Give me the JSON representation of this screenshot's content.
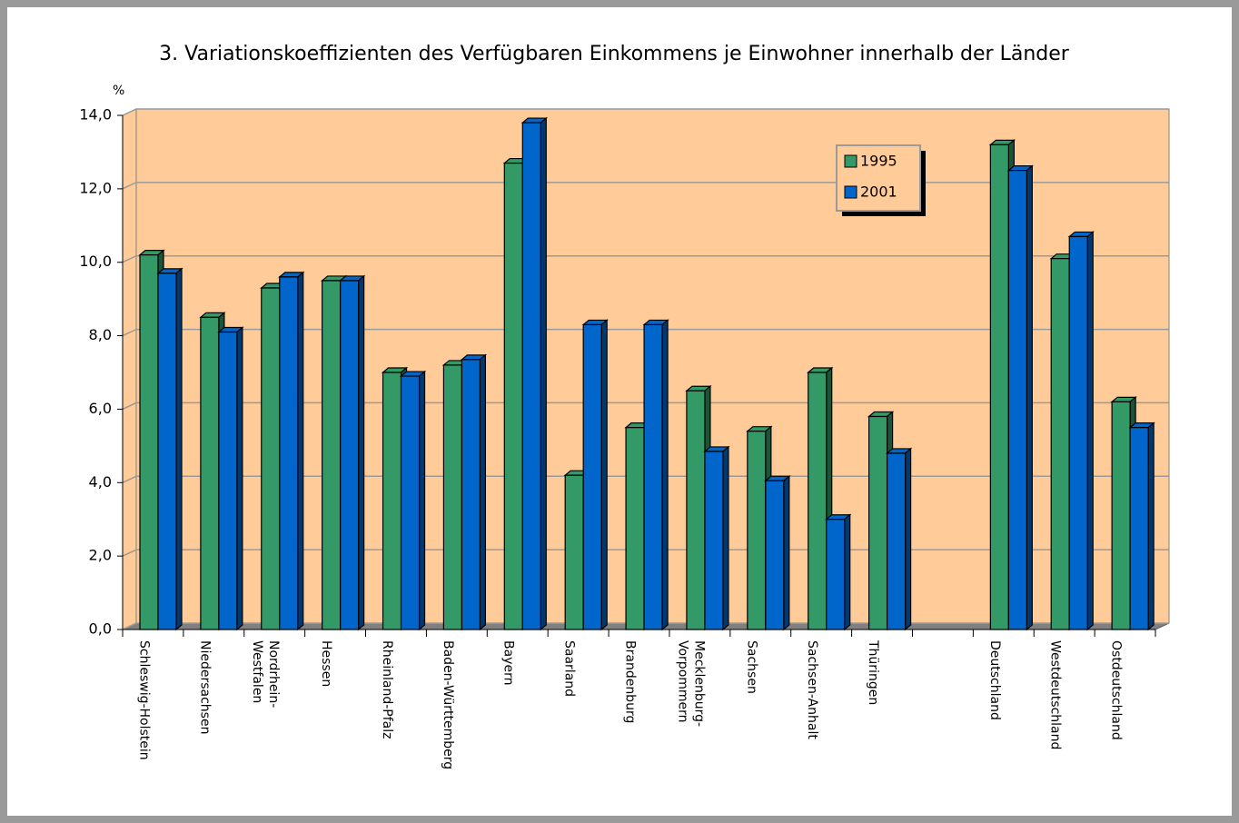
{
  "chart_data": {
    "type": "bar3d",
    "title": "3. Variationskoeffizienten des Verfügbaren Einkommens je Einwohner innerhalb der Länder",
    "y_unit_label": "%",
    "categories": [
      "Schleswig-Holstein",
      "Niedersachsen",
      "Nordrhein-Westfalen",
      "Hessen",
      "Rheinland-Pfalz",
      "Baden-Württemberg",
      "Bayern",
      "Saarland",
      "Brandenburg",
      "Mecklenburg-Vorpommern",
      "Sachsen",
      "Sachsen-Anhalt",
      "Thüringen",
      null,
      "Deutschland",
      "Westdeutschland",
      "Ostdeutschland"
    ],
    "series": [
      {
        "name": "1995",
        "color": "#339966",
        "values": [
          10.2,
          8.5,
          9.3,
          9.5,
          7.0,
          7.2,
          12.7,
          4.2,
          5.5,
          6.5,
          5.4,
          7.0,
          5.8,
          null,
          13.2,
          10.1,
          6.2
        ]
      },
      {
        "name": "2001",
        "color": "#0066cc",
        "values": [
          9.7,
          8.1,
          9.6,
          9.5,
          6.9,
          7.35,
          13.8,
          8.3,
          8.3,
          4.85,
          4.05,
          3.0,
          4.8,
          null,
          12.5,
          10.7,
          5.5
        ]
      }
    ],
    "ylim": [
      0,
      14
    ],
    "yticks": [
      {
        "value": 0,
        "label": "0,0"
      },
      {
        "value": 2,
        "label": "2,0"
      },
      {
        "value": 4,
        "label": "4,0"
      },
      {
        "value": 6,
        "label": "6,0"
      },
      {
        "value": 8,
        "label": "8,0"
      },
      {
        "value": 10,
        "label": "10,0"
      },
      {
        "value": 12,
        "label": "12,0"
      },
      {
        "value": 14,
        "label": "14,0"
      }
    ],
    "grid": true,
    "wall_color": "#ffcc99",
    "legend": "upper right"
  }
}
